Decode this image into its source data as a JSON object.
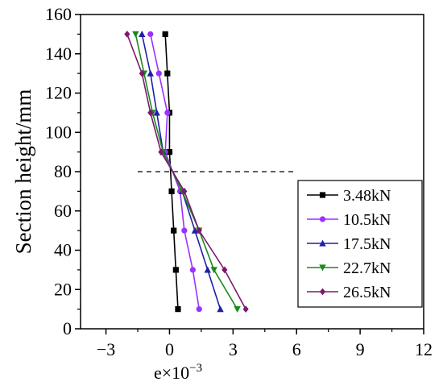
{
  "chart_data": {
    "type": "line",
    "title": "",
    "xlabel": "e×10",
    "xlabel_exponent": "−3",
    "ylabel": "Section height/mm",
    "xlim": [
      -4.2,
      12
    ],
    "ylim": [
      0,
      160
    ],
    "x_ticks": [
      -3,
      0,
      3,
      6,
      9,
      12
    ],
    "x_tick_labels": [
      "−3",
      "0",
      "3",
      "6",
      "9",
      "12"
    ],
    "y_ticks": [
      0,
      20,
      40,
      60,
      80,
      100,
      120,
      140,
      160
    ],
    "y_tick_labels": [
      "0",
      "20",
      "40",
      "60",
      "80",
      "100",
      "120",
      "140",
      "160"
    ],
    "grid": false,
    "legend_position": "right-middle",
    "reference_line": {
      "y": 80,
      "x_from": -1.5,
      "x_to": 6.0,
      "style": "dashed"
    },
    "series": [
      {
        "name": "3.48kN",
        "color": "#000000",
        "marker": "square",
        "points": [
          [
            -0.2,
            150
          ],
          [
            -0.1,
            130
          ],
          [
            0.0,
            110
          ],
          [
            0.0,
            90
          ],
          [
            0.1,
            70
          ],
          [
            0.2,
            50
          ],
          [
            0.3,
            30
          ],
          [
            0.4,
            10
          ]
        ]
      },
      {
        "name": "10.5kN",
        "color": "#9b30ff",
        "marker": "circle",
        "points": [
          [
            -0.9,
            150
          ],
          [
            -0.5,
            130
          ],
          [
            -0.1,
            110
          ],
          [
            -0.2,
            90
          ],
          [
            0.5,
            70
          ],
          [
            0.7,
            50
          ],
          [
            1.1,
            30
          ],
          [
            1.4,
            10
          ]
        ]
      },
      {
        "name": "17.5kN",
        "color": "#1f1fa8",
        "marker": "triangle-up",
        "points": [
          [
            -1.3,
            150
          ],
          [
            -0.9,
            130
          ],
          [
            -0.6,
            110
          ],
          [
            -0.3,
            90
          ],
          [
            0.6,
            70
          ],
          [
            1.2,
            50
          ],
          [
            1.8,
            30
          ],
          [
            2.4,
            10
          ]
        ]
      },
      {
        "name": "22.7kN",
        "color": "#1a8a1a",
        "marker": "triangle-down",
        "points": [
          [
            -1.6,
            150
          ],
          [
            -1.2,
            130
          ],
          [
            -0.8,
            110
          ],
          [
            -0.3,
            90
          ],
          [
            0.6,
            70
          ],
          [
            1.4,
            50
          ],
          [
            2.1,
            30
          ],
          [
            3.2,
            10
          ]
        ]
      },
      {
        "name": "26.5kN",
        "color": "#7a1a6e",
        "marker": "diamond",
        "points": [
          [
            -2.0,
            150
          ],
          [
            -1.3,
            130
          ],
          [
            -0.9,
            110
          ],
          [
            -0.4,
            90
          ],
          [
            0.7,
            70
          ],
          [
            1.4,
            50
          ],
          [
            2.6,
            30
          ],
          [
            3.6,
            10
          ]
        ]
      }
    ]
  }
}
